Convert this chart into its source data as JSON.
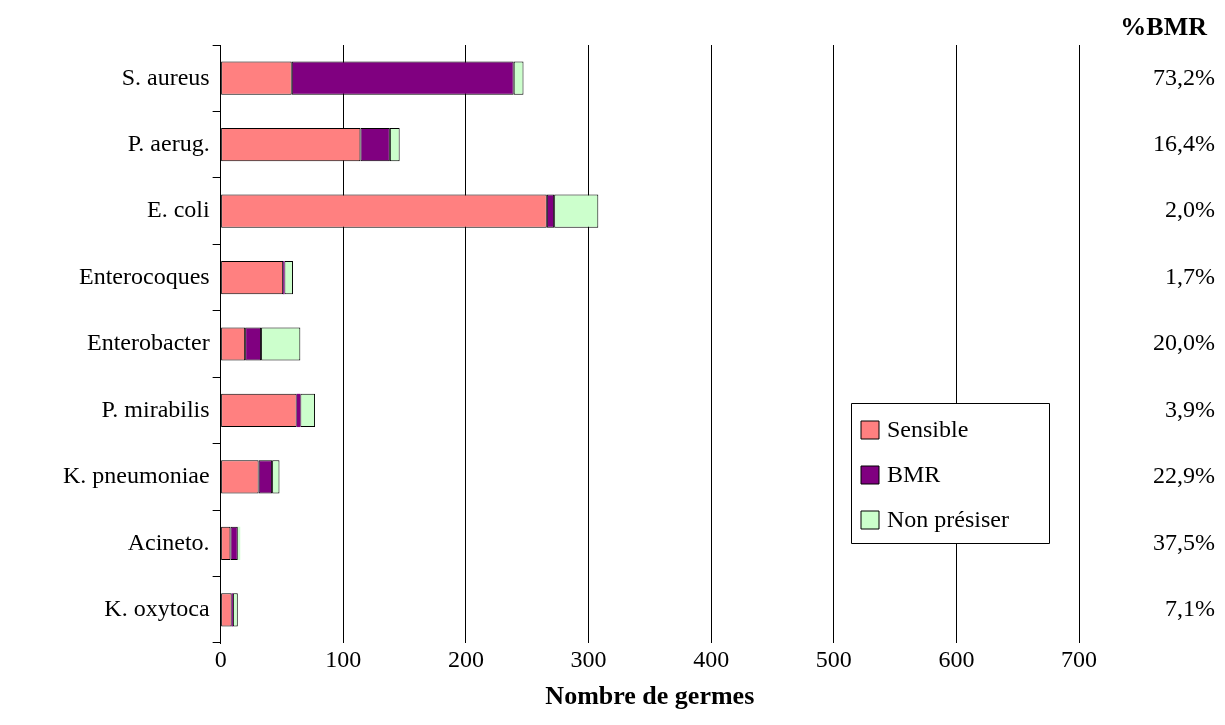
{
  "chart_data": {
    "type": "bar",
    "orientation": "horizontal",
    "stacked": true,
    "xlabel": "Nombre de germes",
    "categories": [
      "S. aureus",
      "P. aerug.",
      "E. coli",
      "Enterocoques",
      "Enterobacter",
      "P. mirabilis",
      "K. pneumoniae",
      "Acineto.",
      "K. oxytoca"
    ],
    "series": [
      {
        "name": "Sensible",
        "color": "#ff8080",
        "values": [
          58,
          114,
          266,
          51,
          20,
          62,
          31,
          8,
          9
        ]
      },
      {
        "name": "BMR",
        "color": "#800080",
        "values": [
          181,
          24,
          6,
          1,
          13,
          3,
          11,
          6,
          1
        ]
      },
      {
        "name": "Non présiser",
        "color": "#ccffcc",
        "values": [
          8,
          8,
          36,
          7,
          32,
          12,
          6,
          2,
          4
        ]
      }
    ],
    "xlim": [
      0,
      700
    ],
    "xticks": [
      0,
      100,
      200,
      300,
      400,
      500,
      600,
      700
    ],
    "grid": "x",
    "legend": "bottom right",
    "annotations": [
      "%BMR",
      "73,2%",
      "16,4%",
      "2,0%",
      "1,7%",
      "20,0%",
      "3,9%",
      "22,9%",
      "37,5%",
      "7,1%"
    ]
  }
}
